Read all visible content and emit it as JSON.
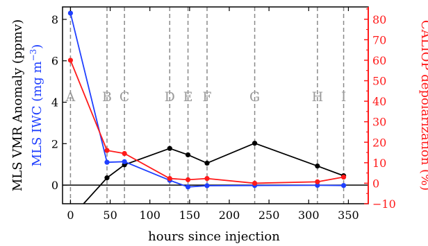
{
  "chart_data": {
    "type": "line",
    "xlabel": "hours since injection",
    "xlim": [
      -10,
      375
    ],
    "xticks": [
      0,
      50,
      100,
      150,
      200,
      250,
      300,
      350
    ],
    "left_axis": {
      "label_part1": "MLS VMR Anomaly (ppmv)",
      "label_part2": "MLS IWC (mg m",
      "label_sup": "−3",
      "label_part3": ")",
      "label_color_1": "#000000",
      "label_color_2": "#1f3fff",
      "ylim": [
        -0.9,
        8.6
      ],
      "yticks": [
        0,
        2,
        4,
        6,
        8
      ]
    },
    "right_axis": {
      "label": "CALIOP depolarization (%)",
      "color": "#ff1a1a",
      "ylim": [
        -10,
        86
      ],
      "yticks": [
        -10,
        0,
        10,
        20,
        30,
        40,
        50,
        60,
        70,
        80
      ]
    },
    "zero_line": true,
    "events": [
      {
        "label": "A",
        "x": 0
      },
      {
        "label": "B",
        "x": 46
      },
      {
        "label": "C",
        "x": 68
      },
      {
        "label": "D",
        "x": 125
      },
      {
        "label": "E",
        "x": 148
      },
      {
        "label": "F",
        "x": 172
      },
      {
        "label": "G",
        "x": 232
      },
      {
        "label": "H",
        "x": 311
      },
      {
        "label": "I",
        "x": 344
      }
    ],
    "series": [
      {
        "axis": "left",
        "color": "#000000",
        "x": [
          0,
          46,
          68,
          125,
          148,
          172,
          232,
          311,
          344
        ],
        "y": [
          -1.6,
          0.35,
          0.98,
          1.77,
          1.46,
          1.06,
          2.02,
          0.92,
          0.45
        ]
      },
      {
        "axis": "left",
        "color": "#1f3fff",
        "x": [
          0,
          46,
          68,
          125,
          148,
          172,
          232,
          311,
          344
        ],
        "y": [
          8.3,
          1.1,
          1.13,
          0.23,
          -0.09,
          -0.03,
          -0.02,
          -0.01,
          -0.02
        ]
      },
      {
        "axis": "right",
        "color": "#ff1a1a",
        "x": [
          0,
          46,
          68,
          125,
          148,
          172,
          232,
          311,
          344
        ],
        "y": [
          60,
          16,
          14.5,
          2.3,
          1.7,
          2.3,
          0,
          0.7,
          3
        ]
      }
    ]
  }
}
